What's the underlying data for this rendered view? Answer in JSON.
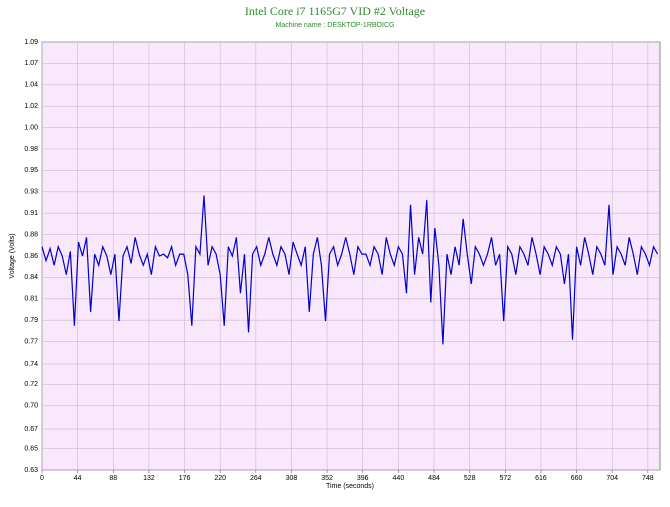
{
  "chart_data": {
    "type": "line",
    "title": "Intel Core i7 1165G7 VID #2 Voltage",
    "subtitle": "Machine name : DESKTOP-1RBOICG",
    "x_label": "Time (seconds)",
    "y_label": "Voltage (Volts)",
    "xlim": [
      0,
      763
    ],
    "ylim": [
      0.63,
      1.09
    ],
    "xticks": [
      0,
      44,
      88,
      132,
      176,
      220,
      264,
      308,
      352,
      396,
      440,
      484,
      528,
      572,
      616,
      660,
      704,
      748
    ],
    "yticks": [
      0.63,
      0.653,
      0.674,
      0.699,
      0.722,
      0.744,
      0.768,
      0.791,
      0.814,
      0.837,
      0.86,
      0.883,
      0.906,
      0.929,
      0.952,
      0.975,
      0.998,
      1.021,
      1.044,
      1.067,
      1.09
    ],
    "ytick_labels": [
      "0.63",
      "0.65",
      "0.67",
      "0.70",
      "0.72",
      "0.74",
      "0.77",
      "0.79",
      "0.81",
      "0.84",
      "0.86",
      "0.88",
      "0.91",
      "0.93",
      "0.95",
      "0.98",
      "1.00",
      "1.02",
      "1.04",
      "1.07",
      "1.09"
    ],
    "grid": true,
    "series": [
      {
        "color": "#0000cc",
        "x": [
          0,
          5,
          10,
          15,
          20,
          25,
          30,
          35,
          40,
          45,
          50,
          55,
          60,
          65,
          70,
          75,
          80,
          85,
          90,
          95,
          100,
          105,
          110,
          115,
          120,
          125,
          130,
          135,
          140,
          145,
          150,
          155,
          160,
          165,
          170,
          175,
          180,
          185,
          190,
          195,
          200,
          205,
          210,
          215,
          220,
          225,
          230,
          235,
          240,
          245,
          250,
          255,
          260,
          265,
          270,
          275,
          280,
          285,
          290,
          295,
          300,
          305,
          310,
          315,
          320,
          325,
          330,
          335,
          340,
          345,
          350,
          355,
          360,
          365,
          370,
          375,
          380,
          385,
          390,
          395,
          400,
          405,
          410,
          415,
          420,
          425,
          430,
          435,
          440,
          445,
          450,
          455,
          460,
          465,
          470,
          475,
          480,
          485,
          490,
          495,
          500,
          505,
          510,
          515,
          520,
          525,
          530,
          535,
          540,
          545,
          550,
          555,
          560,
          565,
          570,
          575,
          580,
          585,
          590,
          595,
          600,
          605,
          610,
          615,
          620,
          625,
          630,
          635,
          640,
          645,
          650,
          655,
          660,
          665,
          670,
          675,
          680,
          685,
          690,
          695,
          700,
          705,
          710,
          715,
          720,
          725,
          730,
          735,
          740,
          745,
          750,
          755,
          760
        ],
        "values": [
          0.87,
          0.855,
          0.868,
          0.85,
          0.87,
          0.86,
          0.84,
          0.865,
          0.785,
          0.875,
          0.86,
          0.88,
          0.8,
          0.862,
          0.85,
          0.87,
          0.86,
          0.84,
          0.862,
          0.79,
          0.86,
          0.87,
          0.852,
          0.88,
          0.862,
          0.85,
          0.862,
          0.84,
          0.87,
          0.86,
          0.862,
          0.858,
          0.87,
          0.85,
          0.862,
          0.862,
          0.84,
          0.785,
          0.87,
          0.862,
          0.925,
          0.85,
          0.87,
          0.862,
          0.84,
          0.785,
          0.87,
          0.86,
          0.88,
          0.82,
          0.862,
          0.778,
          0.862,
          0.87,
          0.85,
          0.862,
          0.88,
          0.862,
          0.85,
          0.87,
          0.862,
          0.84,
          0.875,
          0.862,
          0.85,
          0.87,
          0.8,
          0.862,
          0.88,
          0.85,
          0.79,
          0.862,
          0.87,
          0.85,
          0.862,
          0.88,
          0.862,
          0.84,
          0.87,
          0.862,
          0.862,
          0.85,
          0.87,
          0.862,
          0.84,
          0.88,
          0.862,
          0.85,
          0.87,
          0.862,
          0.82,
          0.915,
          0.84,
          0.88,
          0.862,
          0.92,
          0.81,
          0.89,
          0.85,
          0.765,
          0.862,
          0.84,
          0.87,
          0.85,
          0.9,
          0.862,
          0.83,
          0.87,
          0.862,
          0.85,
          0.862,
          0.88,
          0.85,
          0.862,
          0.79,
          0.87,
          0.862,
          0.84,
          0.87,
          0.862,
          0.85,
          0.88,
          0.862,
          0.84,
          0.87,
          0.862,
          0.85,
          0.87,
          0.862,
          0.83,
          0.862,
          0.77,
          0.87,
          0.85,
          0.88,
          0.862,
          0.84,
          0.87,
          0.862,
          0.85,
          0.915,
          0.84,
          0.87,
          0.862,
          0.85,
          0.88,
          0.862,
          0.84,
          0.87,
          0.862,
          0.85,
          0.87,
          0.862
        ]
      }
    ]
  }
}
